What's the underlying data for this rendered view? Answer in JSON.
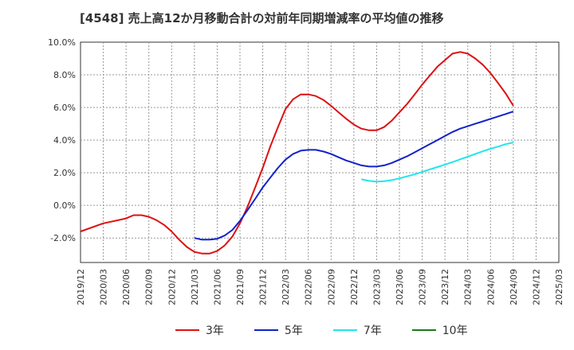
{
  "chart_data": {
    "type": "line",
    "title": "[4548]  売上高12か月移動合計の対前年同期増減率の平均値の推移",
    "xlabel": "",
    "ylabel": "",
    "ylim": [
      -3.5,
      10.0
    ],
    "yticks": [
      -2.0,
      0.0,
      2.0,
      4.0,
      6.0,
      8.0,
      10.0
    ],
    "ytick_labels": [
      "-2.0%",
      "0.0%",
      "2.0%",
      "4.0%",
      "6.0%",
      "8.0%",
      "10.0%"
    ],
    "x_categories": [
      "2019/12",
      "2020/03",
      "2020/06",
      "2020/09",
      "2020/12",
      "2021/03",
      "2021/06",
      "2021/09",
      "2021/12",
      "2022/03",
      "2022/06",
      "2022/09",
      "2022/12",
      "2023/03",
      "2023/06",
      "2023/09",
      "2023/12",
      "2024/03",
      "2024/06",
      "2024/09",
      "2024/12",
      "2025/03"
    ],
    "grid": true,
    "legend_position": "bottom",
    "series": [
      {
        "name": "3年",
        "color": "#dd1111",
        "points": [
          [
            0,
            -1.6
          ],
          [
            1,
            -1.1
          ],
          [
            2,
            -0.8
          ],
          [
            2.33,
            -0.6
          ],
          [
            2.67,
            -0.6
          ],
          [
            3,
            -0.7
          ],
          [
            3.33,
            -0.9
          ],
          [
            3.67,
            -1.2
          ],
          [
            4,
            -1.6
          ],
          [
            4.33,
            -2.1
          ],
          [
            4.67,
            -2.55
          ],
          [
            5,
            -2.85
          ],
          [
            5.33,
            -2.95
          ],
          [
            5.67,
            -2.95
          ],
          [
            6,
            -2.8
          ],
          [
            6.33,
            -2.45
          ],
          [
            6.67,
            -1.9
          ],
          [
            7,
            -1.1
          ],
          [
            7.33,
            -0.1
          ],
          [
            7.67,
            1.1
          ],
          [
            8,
            2.3
          ],
          [
            8.33,
            3.6
          ],
          [
            8.67,
            4.8
          ],
          [
            9,
            5.9
          ],
          [
            9.33,
            6.5
          ],
          [
            9.67,
            6.8
          ],
          [
            10,
            6.8
          ],
          [
            10.33,
            6.7
          ],
          [
            10.67,
            6.45
          ],
          [
            11,
            6.1
          ],
          [
            11.33,
            5.7
          ],
          [
            11.67,
            5.3
          ],
          [
            12,
            4.95
          ],
          [
            12.33,
            4.7
          ],
          [
            12.67,
            4.6
          ],
          [
            13,
            4.6
          ],
          [
            13.33,
            4.8
          ],
          [
            13.67,
            5.2
          ],
          [
            14,
            5.7
          ],
          [
            14.33,
            6.2
          ],
          [
            14.67,
            6.8
          ],
          [
            15,
            7.4
          ],
          [
            15.33,
            7.95
          ],
          [
            15.67,
            8.5
          ],
          [
            16,
            8.9
          ],
          [
            16.33,
            9.3
          ],
          [
            16.67,
            9.4
          ],
          [
            17,
            9.3
          ],
          [
            17.33,
            9.0
          ],
          [
            17.67,
            8.6
          ],
          [
            18,
            8.1
          ],
          [
            18.33,
            7.5
          ],
          [
            18.67,
            6.85
          ],
          [
            19,
            6.1
          ]
        ]
      },
      {
        "name": "5年",
        "color": "#1122cc",
        "points": [
          [
            5,
            -2.0
          ],
          [
            5.33,
            -2.1
          ],
          [
            5.67,
            -2.1
          ],
          [
            6,
            -2.05
          ],
          [
            6.33,
            -1.85
          ],
          [
            6.67,
            -1.5
          ],
          [
            7,
            -0.95
          ],
          [
            7.33,
            -0.3
          ],
          [
            7.67,
            0.4
          ],
          [
            8,
            1.1
          ],
          [
            8.33,
            1.7
          ],
          [
            8.67,
            2.3
          ],
          [
            9,
            2.8
          ],
          [
            9.33,
            3.15
          ],
          [
            9.67,
            3.35
          ],
          [
            10,
            3.4
          ],
          [
            10.33,
            3.4
          ],
          [
            10.67,
            3.3
          ],
          [
            11,
            3.15
          ],
          [
            11.33,
            2.95
          ],
          [
            11.67,
            2.75
          ],
          [
            12,
            2.6
          ],
          [
            12.33,
            2.45
          ],
          [
            12.67,
            2.38
          ],
          [
            13,
            2.38
          ],
          [
            13.33,
            2.45
          ],
          [
            13.67,
            2.6
          ],
          [
            14,
            2.8
          ],
          [
            14.33,
            3.0
          ],
          [
            14.67,
            3.25
          ],
          [
            15,
            3.5
          ],
          [
            15.33,
            3.75
          ],
          [
            15.67,
            4.0
          ],
          [
            16,
            4.25
          ],
          [
            16.33,
            4.5
          ],
          [
            16.67,
            4.7
          ],
          [
            17,
            4.85
          ],
          [
            17.33,
            5.0
          ],
          [
            17.67,
            5.15
          ],
          [
            18,
            5.3
          ],
          [
            18.33,
            5.45
          ],
          [
            18.67,
            5.6
          ],
          [
            19,
            5.75
          ]
        ]
      },
      {
        "name": "7年",
        "color": "#22e5ee",
        "points": [
          [
            12.33,
            1.6
          ],
          [
            12.67,
            1.5
          ],
          [
            13,
            1.45
          ],
          [
            13.33,
            1.48
          ],
          [
            13.67,
            1.55
          ],
          [
            14,
            1.65
          ],
          [
            14.33,
            1.78
          ],
          [
            14.67,
            1.9
          ],
          [
            15,
            2.05
          ],
          [
            15.33,
            2.2
          ],
          [
            15.67,
            2.35
          ],
          [
            16,
            2.5
          ],
          [
            16.33,
            2.65
          ],
          [
            16.67,
            2.82
          ],
          [
            17,
            2.98
          ],
          [
            17.33,
            3.15
          ],
          [
            17.67,
            3.32
          ],
          [
            18,
            3.47
          ],
          [
            18.33,
            3.6
          ],
          [
            18.67,
            3.75
          ],
          [
            19,
            3.85
          ]
        ]
      },
      {
        "name": "10年",
        "color": "#1a7a1a",
        "points": []
      }
    ]
  }
}
